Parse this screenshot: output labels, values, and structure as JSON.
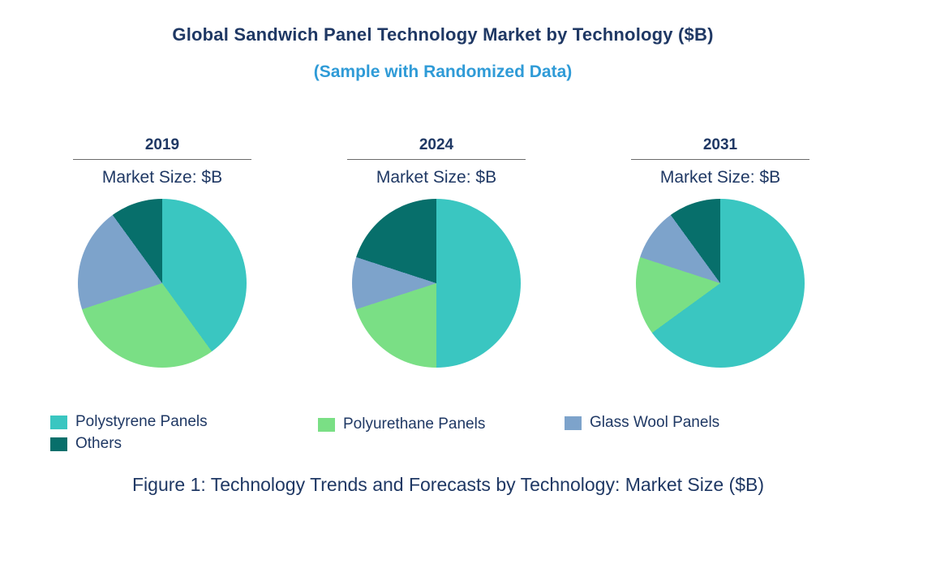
{
  "header": {
    "title": "Global Sandwich Panel Technology Market by Technology ($B)",
    "subtitle": "(Sample with Randomized Data)"
  },
  "caption": "Figure 1: Technology Trends and Forecasts by Technology: Market Size ($B)",
  "colors": {
    "navy_text": "#1F3864",
    "subtitle_blue": "#2F9BD7",
    "polystyrene_teal": "#3AC6C1",
    "polyurethane_green": "#7ADF85",
    "glass_wool_blue": "#7DA3CB",
    "others_dark_teal": "#076F6B",
    "header_rule_gray": "#6b6b6b"
  },
  "legend": [
    {
      "label": "Polystyrene Panels",
      "color": "#3AC6C1"
    },
    {
      "label": "Others",
      "color": "#076F6B"
    },
    {
      "label": "Polyurethane Panels",
      "color": "#7ADF85"
    },
    {
      "label": "Glass Wool Panels",
      "color": "#7DA3CB"
    }
  ],
  "chart_data": [
    {
      "type": "pie",
      "title": "2019",
      "axis_label": "Market Size: $B",
      "categories": [
        "Polystyrene Panels",
        "Polyurethane Panels",
        "Glass Wool Panels",
        "Others"
      ],
      "values": [
        40,
        30,
        20,
        10
      ],
      "value_unit": "percent share (estimated from slice angles; no numeric labels shown)",
      "colors": [
        "#3AC6C1",
        "#7ADF85",
        "#7DA3CB",
        "#076F6B"
      ],
      "start_angle_deg": 0,
      "direction": "clockwise",
      "legend_position": "bottom-left"
    },
    {
      "type": "pie",
      "title": "2024",
      "axis_label": "Market Size: $B",
      "categories": [
        "Polystyrene Panels",
        "Polyurethane Panels",
        "Glass Wool Panels",
        "Others"
      ],
      "values": [
        50,
        20,
        10,
        20
      ],
      "value_unit": "percent share (estimated from slice angles; no numeric labels shown)",
      "colors": [
        "#3AC6C1",
        "#7ADF85",
        "#7DA3CB",
        "#076F6B"
      ],
      "start_angle_deg": 0,
      "direction": "clockwise",
      "legend_position": "bottom-left"
    },
    {
      "type": "pie",
      "title": "2031",
      "axis_label": "Market Size: $B",
      "categories": [
        "Polystyrene Panels",
        "Polyurethane Panels",
        "Glass Wool Panels",
        "Others"
      ],
      "values": [
        65,
        15,
        10,
        10
      ],
      "value_unit": "percent share (estimated from slice angles; no numeric labels shown)",
      "colors": [
        "#3AC6C1",
        "#7ADF85",
        "#7DA3CB",
        "#076F6B"
      ],
      "start_angle_deg": 0,
      "direction": "clockwise",
      "legend_position": "bottom-left"
    }
  ]
}
